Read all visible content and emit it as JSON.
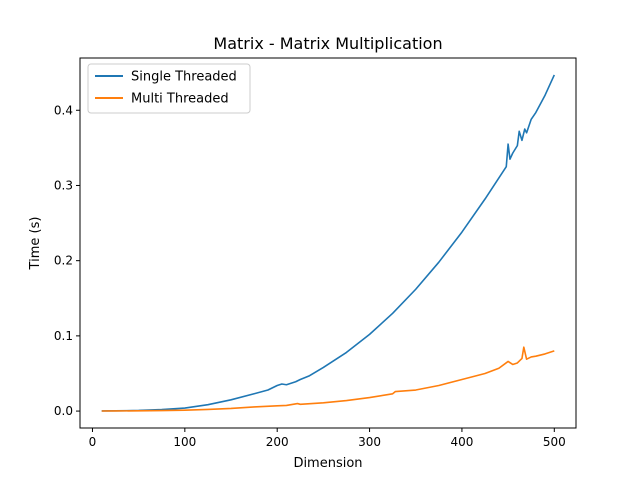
{
  "chart_data": {
    "type": "line",
    "title": "Matrix - Matrix Multiplication",
    "xlabel": "Dimension",
    "ylabel": "Time (s)",
    "xlim": [
      -13.5,
      523.5
    ],
    "ylim": [
      -0.0225,
      0.4695
    ],
    "xticks": [
      0,
      100,
      200,
      300,
      400,
      500
    ],
    "yticks": [
      0.0,
      0.1,
      0.2,
      0.3,
      0.4
    ],
    "ytick_labels": [
      "0.0",
      "0.1",
      "0.2",
      "0.3",
      "0.4"
    ],
    "grid": false,
    "legend_position": "upper-left",
    "series": [
      {
        "name": "Single Threaded",
        "color": "#1f77b4",
        "x": [
          10,
          25,
          50,
          75,
          100,
          125,
          150,
          175,
          190,
          200,
          205,
          210,
          220,
          225,
          235,
          250,
          275,
          300,
          325,
          350,
          375,
          400,
          425,
          440,
          448,
          450,
          452,
          455,
          460,
          462,
          465,
          468,
          470,
          475,
          480,
          490,
          500
        ],
        "y": [
          0.0002,
          0.0003,
          0.0008,
          0.002,
          0.004,
          0.0085,
          0.015,
          0.023,
          0.028,
          0.034,
          0.036,
          0.035,
          0.039,
          0.042,
          0.047,
          0.058,
          0.078,
          0.102,
          0.13,
          0.162,
          0.198,
          0.238,
          0.282,
          0.31,
          0.325,
          0.355,
          0.335,
          0.343,
          0.353,
          0.372,
          0.36,
          0.375,
          0.37,
          0.388,
          0.397,
          0.42,
          0.447
        ]
      },
      {
        "name": "Multi Threaded",
        "color": "#ff7f0e",
        "x": [
          10,
          25,
          50,
          75,
          100,
          125,
          150,
          175,
          200,
          210,
          222,
          225,
          250,
          275,
          300,
          325,
          328,
          350,
          375,
          400,
          425,
          440,
          450,
          455,
          460,
          465,
          467,
          470,
          475,
          480,
          490,
          500
        ],
        "y": [
          0.0001,
          0.0002,
          0.0003,
          0.0007,
          0.0012,
          0.0022,
          0.0035,
          0.0055,
          0.007,
          0.0075,
          0.01,
          0.009,
          0.011,
          0.014,
          0.018,
          0.023,
          0.026,
          0.028,
          0.034,
          0.042,
          0.05,
          0.057,
          0.066,
          0.062,
          0.064,
          0.07,
          0.085,
          0.069,
          0.072,
          0.073,
          0.076,
          0.08
        ]
      }
    ]
  }
}
